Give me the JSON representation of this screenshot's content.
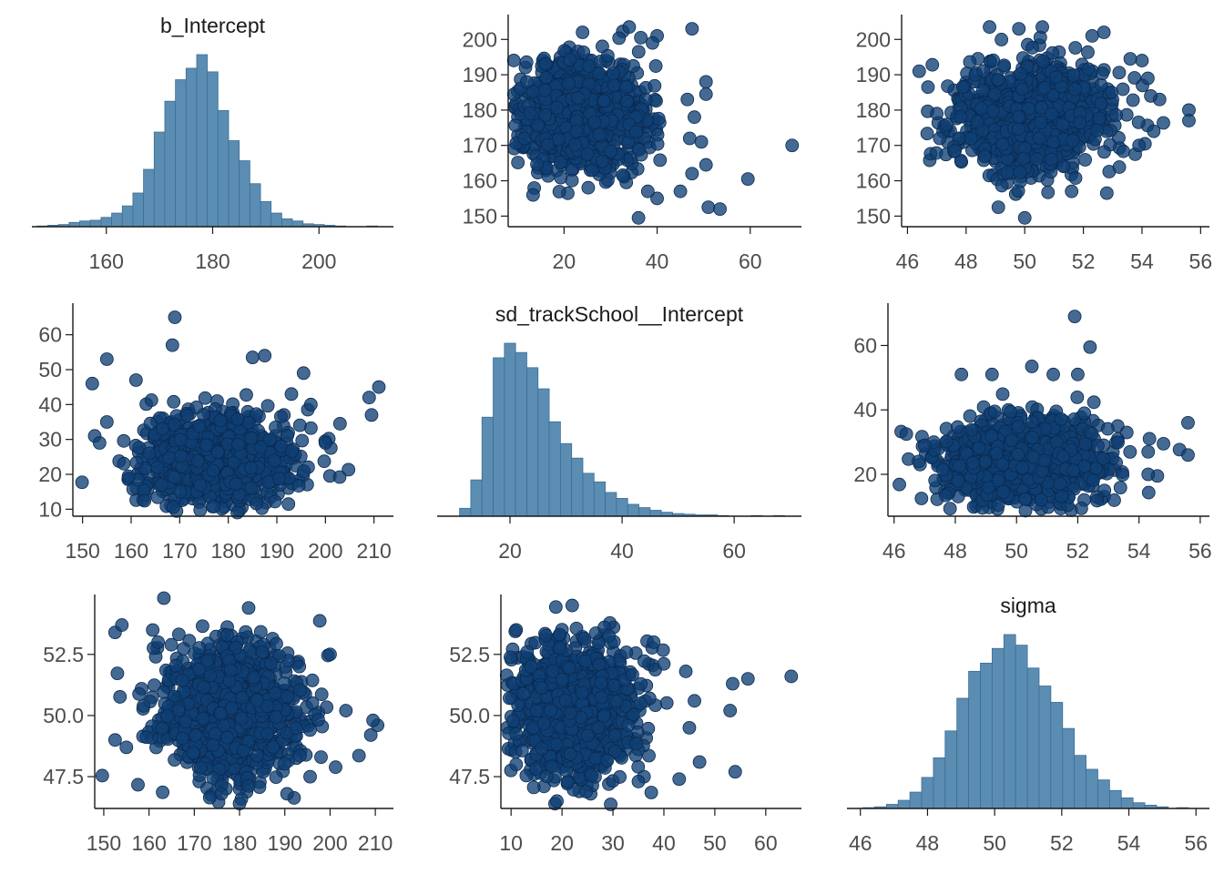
{
  "chart_data": [
    {
      "id": "hist-b-intercept",
      "type": "bar",
      "title": "b_Intercept",
      "xlim": [
        146,
        214
      ],
      "xticks": [
        160,
        180,
        200
      ],
      "bins": [
        {
          "x": 148,
          "count": 1
        },
        {
          "x": 150,
          "count": 2
        },
        {
          "x": 152,
          "count": 3
        },
        {
          "x": 154,
          "count": 6
        },
        {
          "x": 156,
          "count": 8
        },
        {
          "x": 158,
          "count": 9
        },
        {
          "x": 160,
          "count": 13
        },
        {
          "x": 162,
          "count": 19
        },
        {
          "x": 164,
          "count": 29
        },
        {
          "x": 166,
          "count": 47
        },
        {
          "x": 168,
          "count": 80
        },
        {
          "x": 170,
          "count": 132
        },
        {
          "x": 172,
          "count": 175
        },
        {
          "x": 174,
          "count": 205
        },
        {
          "x": 176,
          "count": 221
        },
        {
          "x": 178,
          "count": 240
        },
        {
          "x": 180,
          "count": 216
        },
        {
          "x": 182,
          "count": 162
        },
        {
          "x": 184,
          "count": 120
        },
        {
          "x": 186,
          "count": 92
        },
        {
          "x": 188,
          "count": 60
        },
        {
          "x": 190,
          "count": 35
        },
        {
          "x": 192,
          "count": 19
        },
        {
          "x": 194,
          "count": 11
        },
        {
          "x": 196,
          "count": 8
        },
        {
          "x": 198,
          "count": 4
        },
        {
          "x": 200,
          "count": 3
        },
        {
          "x": 202,
          "count": 2
        },
        {
          "x": 204,
          "count": 1
        },
        {
          "x": 210,
          "count": 1
        }
      ]
    },
    {
      "id": "scatter-sd-vs-intercept",
      "type": "scatter",
      "xlim": [
        8,
        71
      ],
      "ylim": [
        147,
        206
      ],
      "xticks": [
        20,
        40,
        60
      ],
      "yticks": [
        150,
        160,
        170,
        180,
        190,
        200
      ],
      "ytick_labels": [
        "150",
        "160",
        "170",
        "180",
        "190",
        "200"
      ],
      "center": [
        24,
        178
      ],
      "spread": [
        6.5,
        7.5
      ],
      "n_points": 1100,
      "outliers": [
        [
          69,
          170
        ],
        [
          59.5,
          160.5
        ],
        [
          51,
          152.5
        ],
        [
          53.5,
          152
        ],
        [
          47.5,
          203
        ],
        [
          36,
          149.5
        ],
        [
          34,
          203.5
        ],
        [
          40,
          201
        ],
        [
          39,
          199
        ],
        [
          36.5,
          200.5
        ],
        [
          50.5,
          184.5
        ],
        [
          46.5,
          183
        ],
        [
          50.5,
          188
        ],
        [
          48,
          178
        ],
        [
          47,
          172
        ],
        [
          49.5,
          171
        ],
        [
          50.5,
          164.5
        ],
        [
          47.5,
          162
        ],
        [
          45,
          157
        ],
        [
          40,
          155
        ],
        [
          38,
          157
        ],
        [
          12,
          188
        ]
      ]
    },
    {
      "id": "scatter-sigma-vs-intercept",
      "type": "scatter",
      "xlim": [
        45.8,
        56.3
      ],
      "ylim": [
        147,
        206
      ],
      "xticks": [
        46,
        48,
        50,
        52,
        54,
        56
      ],
      "yticks": [
        150,
        160,
        170,
        180,
        190,
        200
      ],
      "ytick_labels": [
        "150",
        "160",
        "170",
        "180",
        "190",
        "200"
      ],
      "center": [
        50.2,
        178
      ],
      "spread": [
        1.35,
        7.5
      ],
      "n_points": 1100,
      "outliers": [
        [
          55.6,
          180
        ],
        [
          55.6,
          177
        ],
        [
          54.6,
          183
        ],
        [
          54.3,
          184
        ],
        [
          54.2,
          189
        ],
        [
          54,
          194
        ],
        [
          53.6,
          194.5
        ],
        [
          52.7,
          202
        ],
        [
          52.3,
          201
        ],
        [
          50.6,
          203.5
        ],
        [
          49.8,
          203
        ],
        [
          48.8,
          203.5
        ],
        [
          49.1,
          152.5
        ],
        [
          50,
          149.5
        ],
        [
          51.6,
          157
        ],
        [
          52.8,
          156.5
        ],
        [
          46.4,
          191
        ],
        [
          46.7,
          186.5
        ],
        [
          47,
          179
        ],
        [
          47.1,
          172
        ],
        [
          54.4,
          174
        ],
        [
          53.9,
          170
        ]
      ]
    },
    {
      "id": "scatter-intercept-vs-sd",
      "type": "scatter",
      "xlim": [
        148,
        214
      ],
      "ylim": [
        8,
        68
      ],
      "xticks": [
        150,
        160,
        170,
        180,
        190,
        200,
        210
      ],
      "yticks": [
        10,
        20,
        30,
        40,
        50,
        60
      ],
      "ytick_labels": [
        "10",
        "20",
        "30",
        "40",
        "50",
        "60"
      ],
      "center": [
        178,
        24
      ],
      "spread": [
        7.5,
        6.5
      ],
      "n_points": 1100,
      "outliers": [
        [
          169,
          65
        ],
        [
          168.5,
          57
        ],
        [
          185,
          53.5
        ],
        [
          187.5,
          54
        ],
        [
          155,
          53
        ],
        [
          195.5,
          49
        ],
        [
          152,
          46
        ],
        [
          209,
          42
        ],
        [
          211,
          45
        ],
        [
          209.5,
          37
        ],
        [
          203,
          34.5
        ],
        [
          152.5,
          31
        ],
        [
          153.5,
          29
        ],
        [
          155,
          35
        ],
        [
          200,
          29
        ],
        [
          161,
          47
        ],
        [
          197,
          40
        ],
        [
          193,
          43
        ]
      ]
    },
    {
      "id": "hist-sd-trackschool",
      "type": "bar",
      "title": "sd_trackSchool__Intercept",
      "xlim": [
        7,
        72
      ],
      "xticks": [
        20,
        40,
        60
      ],
      "bins": [
        {
          "x": 12,
          "count": 12
        },
        {
          "x": 14,
          "count": 55
        },
        {
          "x": 16,
          "count": 150
        },
        {
          "x": 18,
          "count": 240
        },
        {
          "x": 20,
          "count": 262
        },
        {
          "x": 22,
          "count": 248
        },
        {
          "x": 24,
          "count": 225
        },
        {
          "x": 26,
          "count": 193
        },
        {
          "x": 28,
          "count": 143
        },
        {
          "x": 30,
          "count": 110
        },
        {
          "x": 32,
          "count": 88
        },
        {
          "x": 34,
          "count": 65
        },
        {
          "x": 36,
          "count": 52
        },
        {
          "x": 38,
          "count": 36
        },
        {
          "x": 40,
          "count": 27
        },
        {
          "x": 42,
          "count": 18
        },
        {
          "x": 44,
          "count": 13
        },
        {
          "x": 46,
          "count": 9
        },
        {
          "x": 48,
          "count": 6
        },
        {
          "x": 50,
          "count": 4
        },
        {
          "x": 52,
          "count": 3
        },
        {
          "x": 54,
          "count": 2
        },
        {
          "x": 56,
          "count": 2
        },
        {
          "x": 58,
          "count": 1
        },
        {
          "x": 64,
          "count": 1
        },
        {
          "x": 68,
          "count": 1
        }
      ]
    },
    {
      "id": "scatter-sigma-vs-sd",
      "type": "scatter",
      "xlim": [
        45.8,
        56.3
      ],
      "ylim": [
        7,
        72
      ],
      "xticks": [
        46,
        48,
        50,
        52,
        54,
        56
      ],
      "yticks": [
        20,
        40,
        60
      ],
      "ytick_labels": [
        "20",
        "40",
        "60"
      ],
      "center": [
        50.2,
        24
      ],
      "spread": [
        1.35,
        6.5
      ],
      "n_points": 1100,
      "outliers": [
        [
          51.9,
          69
        ],
        [
          52.4,
          59.5
        ],
        [
          55.6,
          36
        ],
        [
          55.6,
          26
        ],
        [
          54.6,
          19.5
        ],
        [
          54.3,
          20
        ],
        [
          54.8,
          29.5
        ],
        [
          54.3,
          27
        ],
        [
          53.6,
          33
        ],
        [
          46.4,
          32.5
        ],
        [
          46.8,
          24
        ],
        [
          47,
          29
        ],
        [
          50.5,
          53.5
        ],
        [
          49.2,
          51
        ],
        [
          48.2,
          51
        ],
        [
          51.2,
          51
        ],
        [
          52,
          51
        ]
      ]
    },
    {
      "id": "scatter-intercept-vs-sigma",
      "type": "scatter",
      "xlim": [
        148,
        214
      ],
      "ylim": [
        46.2,
        54.8
      ],
      "xticks": [
        150,
        160,
        170,
        180,
        190,
        200,
        210
      ],
      "yticks": [
        47.5,
        50,
        52.5
      ],
      "ytick_labels": [
        "47.5",
        "50.0",
        "52.5"
      ],
      "center": [
        178,
        50.2
      ],
      "spread": [
        7.5,
        1.35
      ],
      "n_points": 1100,
      "outliers": [
        [
          152.5,
          53.4
        ],
        [
          154,
          53.7
        ],
        [
          209,
          49.2
        ],
        [
          210.5,
          49.6
        ],
        [
          209.5,
          49.8
        ],
        [
          203.5,
          50.2
        ],
        [
          182,
          54.4
        ],
        [
          180,
          46.4
        ],
        [
          176,
          46.8
        ],
        [
          190.5,
          46.8
        ],
        [
          152.5,
          49
        ],
        [
          155,
          48.7
        ],
        [
          200,
          52.5
        ],
        [
          198,
          48.3
        ],
        [
          162,
          53
        ]
      ]
    },
    {
      "id": "scatter-sd-vs-sigma",
      "type": "scatter",
      "xlim": [
        8,
        67
      ],
      "ylim": [
        46.2,
        54.8
      ],
      "xticks": [
        10,
        20,
        30,
        40,
        50,
        60
      ],
      "yticks": [
        47.5,
        50,
        52.5
      ],
      "ytick_labels": [
        "47.5",
        "50.0",
        "52.5"
      ],
      "center": [
        22,
        50.2
      ],
      "spread": [
        6.0,
        1.35
      ],
      "n_points": 1100,
      "outliers": [
        [
          65,
          51.6
        ],
        [
          56.5,
          51.5
        ],
        [
          53.5,
          51.3
        ],
        [
          53,
          50.2
        ],
        [
          54,
          47.7
        ],
        [
          47,
          48.1
        ],
        [
          45,
          49.5
        ],
        [
          46,
          50.6
        ],
        [
          43,
          47.4
        ],
        [
          38,
          53
        ],
        [
          22,
          54.5
        ],
        [
          11,
          53.5
        ],
        [
          11,
          48
        ],
        [
          19,
          46.5
        ],
        [
          35,
          47.3
        ]
      ]
    },
    {
      "id": "hist-sigma",
      "type": "bar",
      "title": "sigma",
      "xlim": [
        45.6,
        56.4
      ],
      "xticks": [
        46,
        48,
        50,
        52,
        54,
        56
      ],
      "bins": [
        {
          "x": 46.25,
          "count": 1
        },
        {
          "x": 46.6,
          "count": 2
        },
        {
          "x": 46.95,
          "count": 5
        },
        {
          "x": 47.3,
          "count": 10
        },
        {
          "x": 47.65,
          "count": 20
        },
        {
          "x": 48.0,
          "count": 38
        },
        {
          "x": 48.35,
          "count": 62
        },
        {
          "x": 48.7,
          "count": 95
        },
        {
          "x": 49.05,
          "count": 135
        },
        {
          "x": 49.4,
          "count": 168
        },
        {
          "x": 49.75,
          "count": 178
        },
        {
          "x": 50.1,
          "count": 196
        },
        {
          "x": 50.45,
          "count": 213
        },
        {
          "x": 50.8,
          "count": 200
        },
        {
          "x": 51.15,
          "count": 172
        },
        {
          "x": 51.5,
          "count": 150
        },
        {
          "x": 51.85,
          "count": 130
        },
        {
          "x": 52.2,
          "count": 98
        },
        {
          "x": 52.55,
          "count": 65
        },
        {
          "x": 52.9,
          "count": 48
        },
        {
          "x": 53.25,
          "count": 35
        },
        {
          "x": 53.6,
          "count": 22
        },
        {
          "x": 53.95,
          "count": 13
        },
        {
          "x": 54.3,
          "count": 7
        },
        {
          "x": 54.65,
          "count": 4
        },
        {
          "x": 55.0,
          "count": 2
        },
        {
          "x": 55.6,
          "count": 1
        }
      ]
    }
  ]
}
